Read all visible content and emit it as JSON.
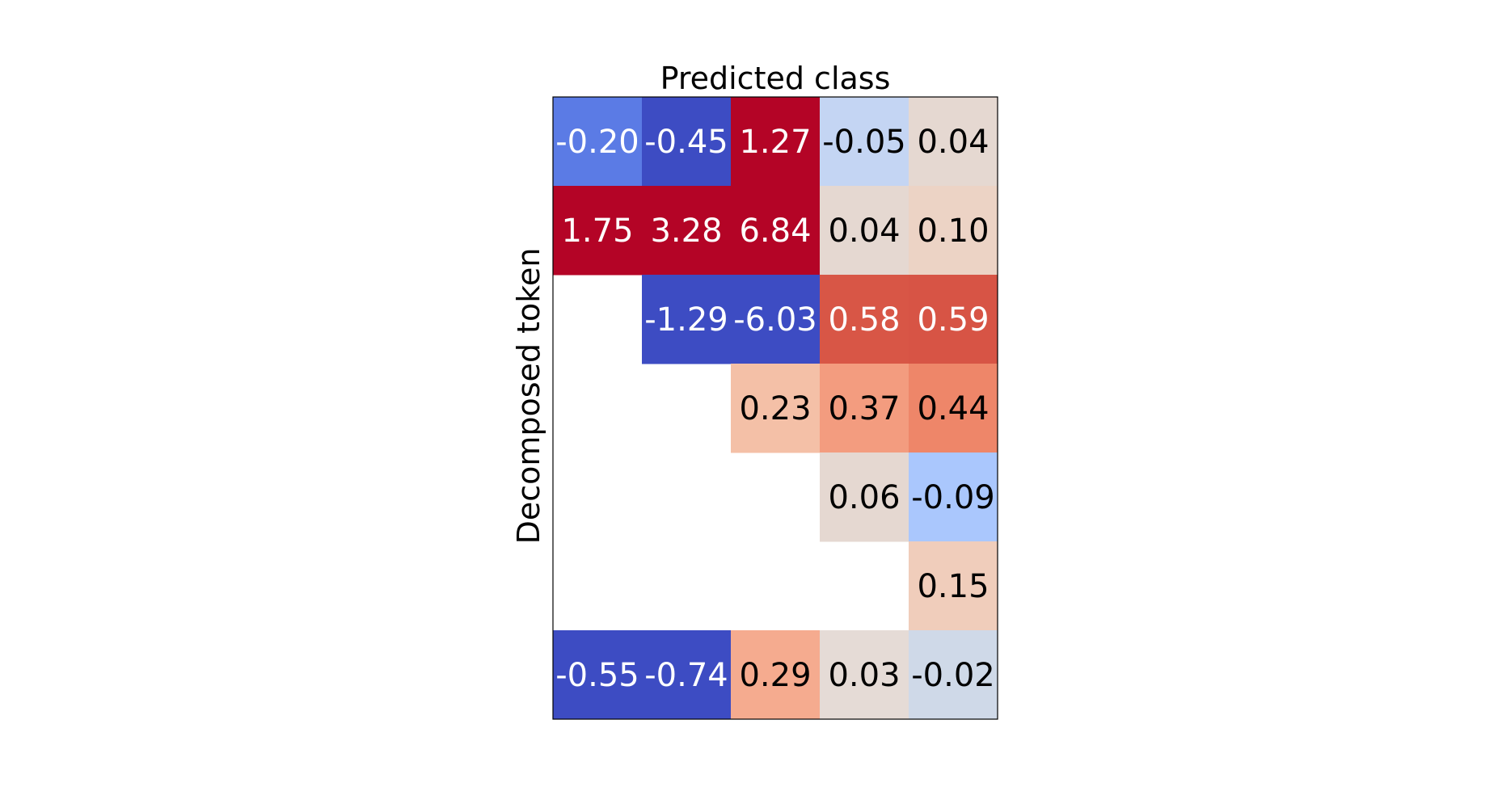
{
  "chart_data": {
    "type": "heatmap",
    "title": "",
    "xlabel": "Predicted class",
    "ylabel": "Decomposed token",
    "n_rows": 7,
    "n_cols": 5,
    "colormap": "coolwarm",
    "color_range": [
      -1,
      1
    ],
    "grid": false,
    "cells": [
      {
        "row": 0,
        "col": 0,
        "value": -0.2,
        "label": "-0.20",
        "color": "#5b7be5",
        "text_color": "#ffffff"
      },
      {
        "row": 0,
        "col": 1,
        "value": -0.45,
        "label": "-0.45",
        "color": "#3d4cc3",
        "text_color": "#ffffff"
      },
      {
        "row": 0,
        "col": 2,
        "value": 1.27,
        "label": "1.27",
        "color": "#b40426",
        "text_color": "#ffffff"
      },
      {
        "row": 0,
        "col": 3,
        "value": -0.05,
        "label": "-0.05",
        "color": "#c4d5f3",
        "text_color": "#000000"
      },
      {
        "row": 0,
        "col": 4,
        "value": 0.04,
        "label": "0.04",
        "color": "#e5d8d1",
        "text_color": "#000000"
      },
      {
        "row": 1,
        "col": 0,
        "value": 1.75,
        "label": "1.75",
        "color": "#b40426",
        "text_color": "#ffffff"
      },
      {
        "row": 1,
        "col": 1,
        "value": 3.28,
        "label": "3.28",
        "color": "#b40426",
        "text_color": "#ffffff"
      },
      {
        "row": 1,
        "col": 2,
        "value": 6.84,
        "label": "6.84",
        "color": "#b40426",
        "text_color": "#ffffff"
      },
      {
        "row": 1,
        "col": 3,
        "value": 0.04,
        "label": "0.04",
        "color": "#e5d8d1",
        "text_color": "#000000"
      },
      {
        "row": 1,
        "col": 4,
        "value": 0.1,
        "label": "0.10",
        "color": "#ecd3c5",
        "text_color": "#000000"
      },
      {
        "row": 2,
        "col": 1,
        "value": -1.29,
        "label": "-1.29",
        "color": "#3d4cc3",
        "text_color": "#ffffff"
      },
      {
        "row": 2,
        "col": 2,
        "value": -6.03,
        "label": "-6.03",
        "color": "#3d4cc3",
        "text_color": "#ffffff"
      },
      {
        "row": 2,
        "col": 3,
        "value": 0.58,
        "label": "0.58",
        "color": "#d85646",
        "text_color": "#ffffff"
      },
      {
        "row": 2,
        "col": 4,
        "value": 0.59,
        "label": "0.59",
        "color": "#d75445",
        "text_color": "#ffffff"
      },
      {
        "row": 3,
        "col": 2,
        "value": 0.23,
        "label": "0.23",
        "color": "#f4c0a7",
        "text_color": "#000000"
      },
      {
        "row": 3,
        "col": 3,
        "value": 0.37,
        "label": "0.37",
        "color": "#f39c7f",
        "text_color": "#000000"
      },
      {
        "row": 3,
        "col": 4,
        "value": 0.44,
        "label": "0.44",
        "color": "#ee8669",
        "text_color": "#000000"
      },
      {
        "row": 4,
        "col": 3,
        "value": 0.06,
        "label": "0.06",
        "color": "#e5d8d1",
        "text_color": "#000000"
      },
      {
        "row": 4,
        "col": 4,
        "value": -0.09,
        "label": "-0.09",
        "color": "#aac7fd",
        "text_color": "#000000"
      },
      {
        "row": 5,
        "col": 4,
        "value": 0.15,
        "label": "0.15",
        "color": "#f0cdbb",
        "text_color": "#000000"
      },
      {
        "row": 6,
        "col": 0,
        "value": -0.55,
        "label": "-0.55",
        "color": "#3d4cc3",
        "text_color": "#ffffff"
      },
      {
        "row": 6,
        "col": 1,
        "value": -0.74,
        "label": "-0.74",
        "color": "#3d4cc3",
        "text_color": "#ffffff"
      },
      {
        "row": 6,
        "col": 2,
        "value": 0.29,
        "label": "0.29",
        "color": "#f5ab8f",
        "text_color": "#000000"
      },
      {
        "row": 6,
        "col": 3,
        "value": 0.03,
        "label": "0.03",
        "color": "#e5dbd6",
        "text_color": "#000000"
      },
      {
        "row": 6,
        "col": 4,
        "value": -0.02,
        "label": "-0.02",
        "color": "#cfd9e8",
        "text_color": "#000000"
      }
    ]
  }
}
